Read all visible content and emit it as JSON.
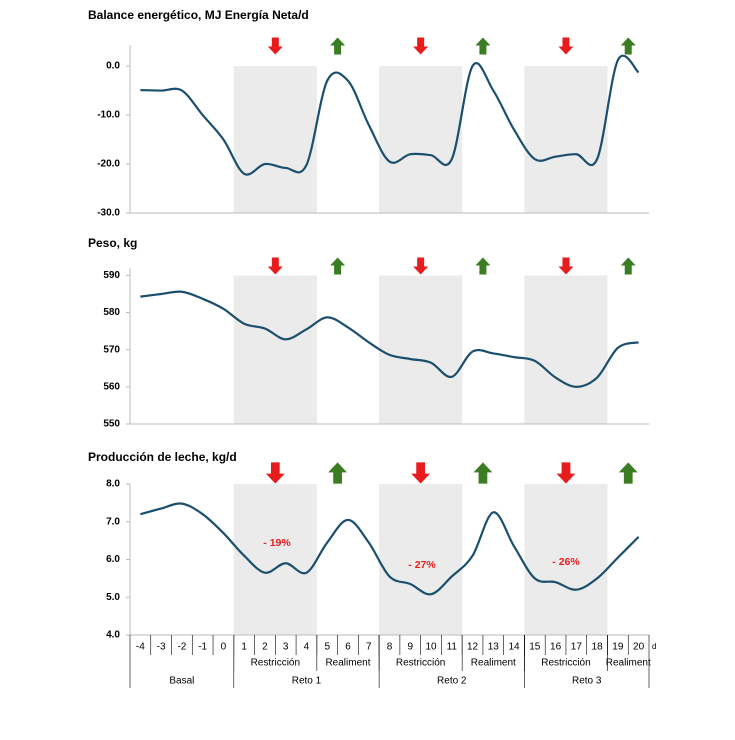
{
  "x_axis": {
    "categories": [
      "-4",
      "-3",
      "-2",
      "-1",
      "0",
      "1",
      "2",
      "3",
      "4",
      "5",
      "6",
      "7",
      "8",
      "9",
      "10",
      "11",
      "12",
      "13",
      "14",
      "15",
      "16",
      "17",
      "18",
      "19",
      "20"
    ],
    "unit": "d",
    "groups": [
      "Restricción",
      "Realiment",
      "Restricción",
      "Realiment",
      "Restricción",
      "Realiment"
    ],
    "periods": [
      "Basal",
      "Reto 1",
      "Reto 2",
      "Reto 3"
    ]
  },
  "chart_data": [
    {
      "type": "line",
      "title": "Balance energético, MJ Energía Neta/d",
      "color": "#1b4f6e",
      "values": [
        -4.9,
        -5,
        -5,
        -10,
        -15,
        -22,
        -20,
        -20.8,
        -20.2,
        -3,
        -3,
        -12,
        -19.5,
        -18,
        -18.2,
        -19,
        0,
        -5,
        -13,
        -19,
        -18.5,
        -18,
        -19,
        1.2,
        -1.3
      ],
      "ylim": [
        -30,
        4.3
      ],
      "yticks": [
        {
          "value": 0,
          "label": "0.0"
        },
        {
          "value": -10,
          "label": "-10.0"
        },
        {
          "value": -20,
          "label": "-20.0"
        },
        {
          "value": -30,
          "label": "-30.0"
        }
      ]
    },
    {
      "type": "line",
      "title": "Peso, kg",
      "color": "#1b4f6e",
      "values": [
        584.3,
        585,
        585.6,
        583.7,
        581,
        577,
        575.7,
        572.8,
        575.5,
        578.7,
        576,
        572,
        568.6,
        567.5,
        566.5,
        562.7,
        569.5,
        569,
        568,
        567,
        562.5,
        560,
        562.5,
        570.5,
        572
      ],
      "ylim": [
        550,
        592
      ],
      "yticks": [
        590,
        580,
        570,
        560,
        550
      ]
    },
    {
      "type": "line",
      "title": "Producción de leche, kg/d",
      "color": "#1b4f6e",
      "values": [
        7.2,
        7.35,
        7.48,
        7.2,
        6.7,
        6.1,
        5.65,
        5.9,
        5.65,
        6.45,
        7.05,
        6.45,
        5.55,
        5.35,
        5.08,
        5.55,
        6.1,
        7.25,
        6.35,
        5.5,
        5.4,
        5.2,
        5.5,
        6.05,
        6.6
      ],
      "ylim": [
        4,
        8
      ],
      "yticks": [
        {
          "value": 8,
          "label": "8.0"
        },
        {
          "value": 7,
          "label": "7.0"
        },
        {
          "value": 6,
          "label": "6.0"
        },
        {
          "value": 5,
          "label": "5.0"
        },
        {
          "value": 4,
          "label": "4.0"
        }
      ],
      "annotations": [
        "- 19%",
        "- 27%",
        "- 26%"
      ]
    }
  ]
}
